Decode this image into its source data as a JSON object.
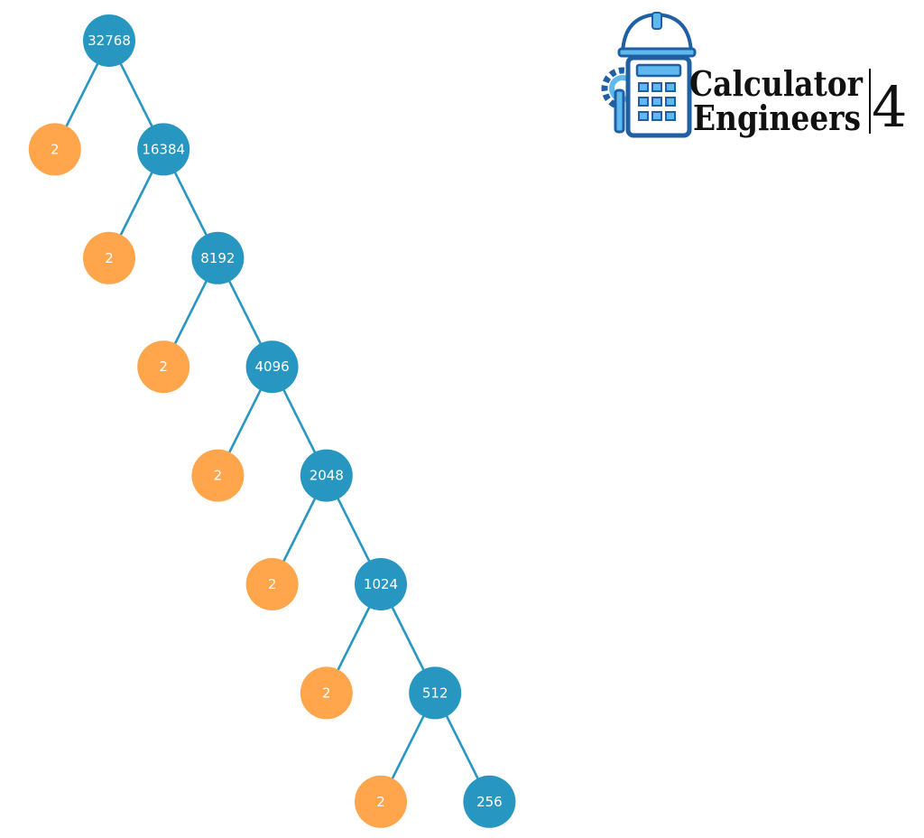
{
  "diagram": {
    "type": "factor-tree",
    "root": "32768",
    "levels": [
      {
        "composite": "32768"
      },
      {
        "prime": "2",
        "composite": "16384"
      },
      {
        "prime": "2",
        "composite": "8192"
      },
      {
        "prime": "2",
        "composite": "4096"
      },
      {
        "prime": "2",
        "composite": "2048"
      },
      {
        "prime": "2",
        "composite": "1024"
      },
      {
        "prime": "2",
        "composite": "512"
      },
      {
        "prime": "2",
        "composite": "256"
      }
    ]
  },
  "colors": {
    "composite_node": "#2797c2",
    "prime_node": "#ffa64d",
    "edge": "#2797c2",
    "node_text": "#ffffff",
    "logo_blue": "#1f5fa3",
    "logo_light_blue": "#5fb8ee",
    "logo_text": "#111111"
  },
  "logo": {
    "line1": "Calculator",
    "line2": "Engineers",
    "number": "4",
    "icon": "calculator-hardhat-icon"
  }
}
